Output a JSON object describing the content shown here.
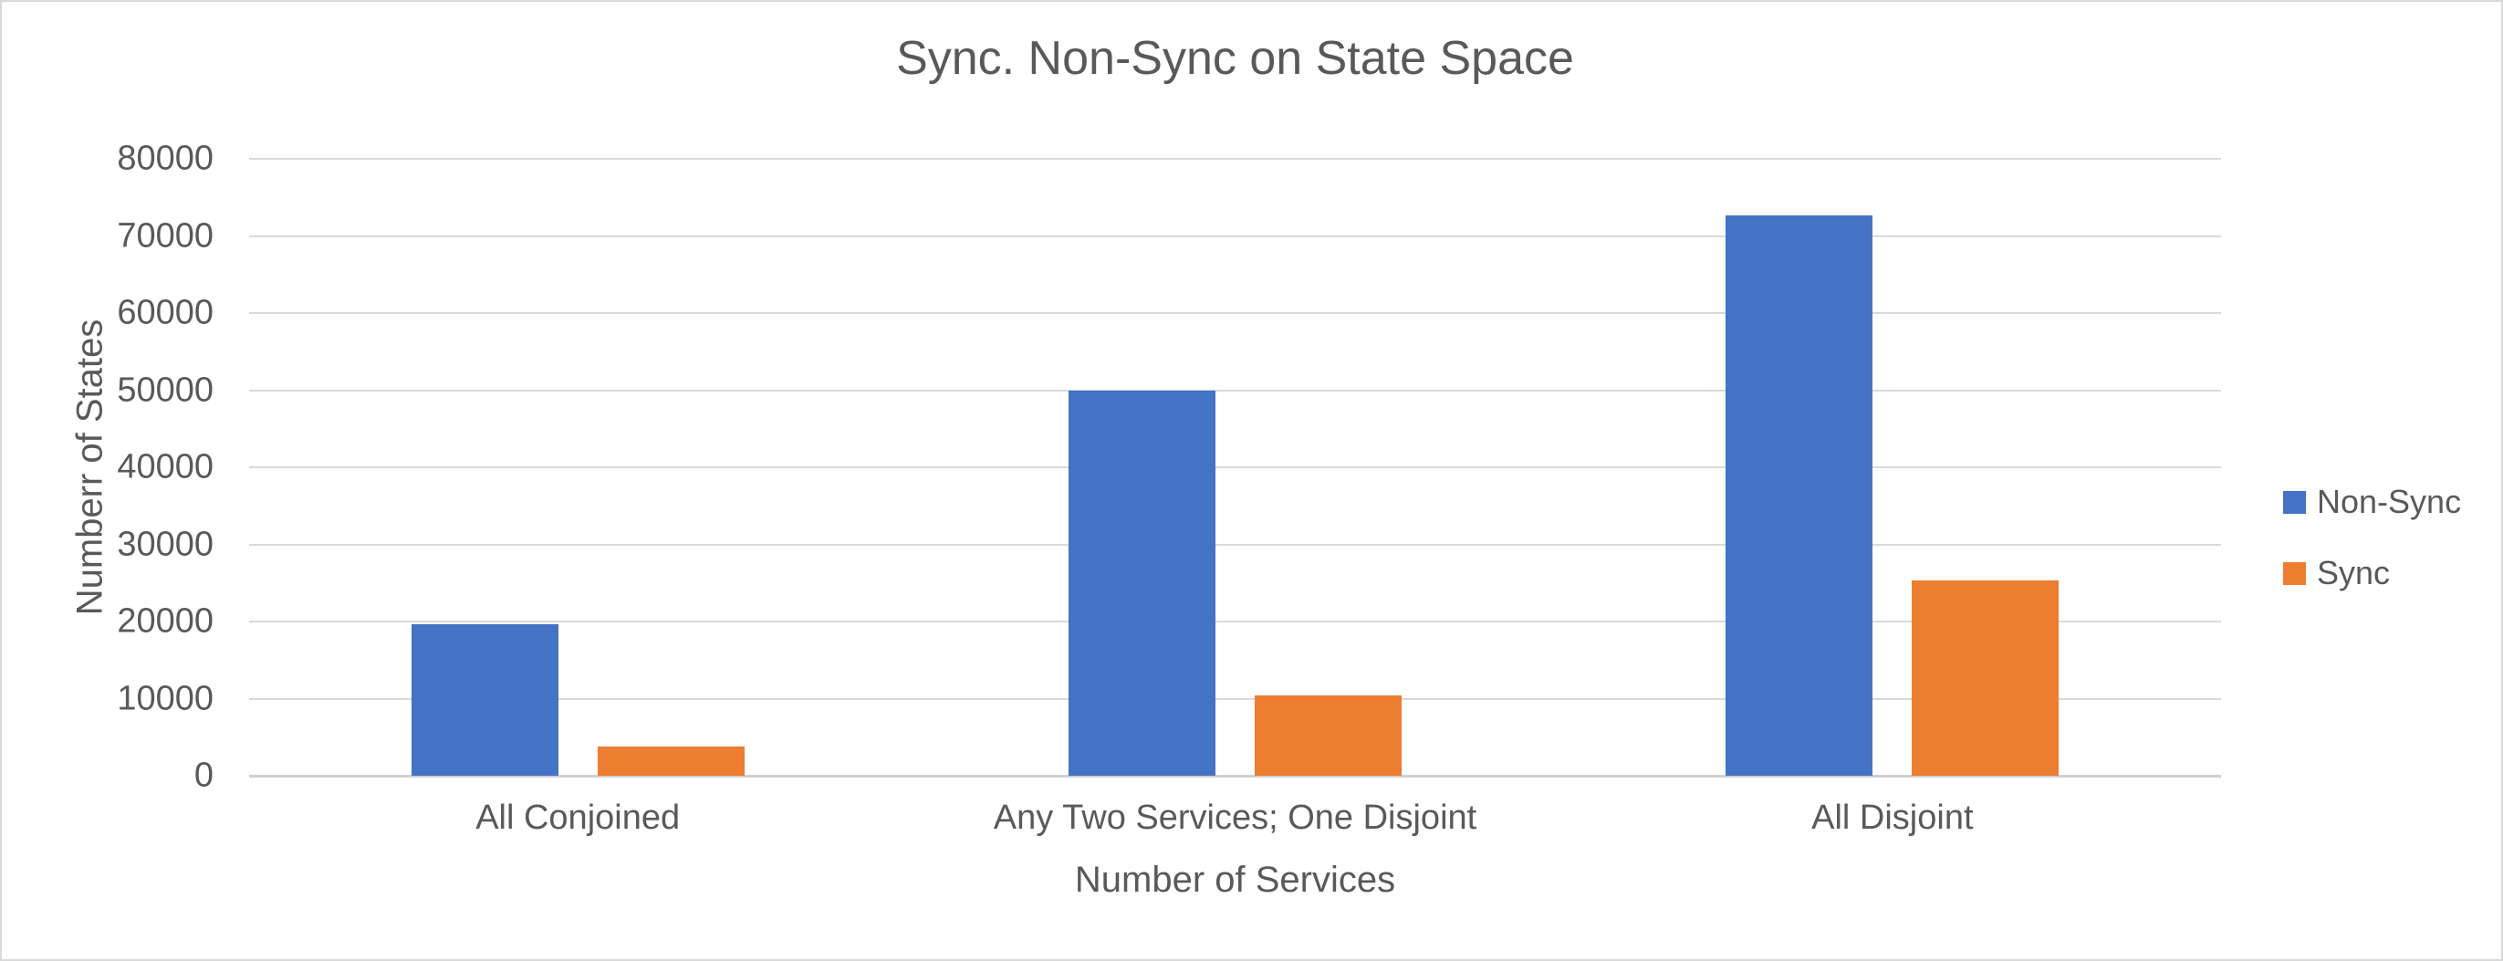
{
  "chart": {
    "background": "#ffffff",
    "border_color": "#d9d9d9",
    "text_color": "#595959",
    "gridline_color": "#d9d9d9"
  },
  "chart_data": {
    "type": "bar",
    "title": "Sync. Non-Sync on State Space",
    "xlabel": "Number of Services",
    "ylabel": "Numberr of States",
    "categories": [
      "All Conjoined",
      "Any Two Services; One Disjoint",
      "All Disjoint"
    ],
    "series": [
      {
        "name": "Non-Sync",
        "color": "#4472C4",
        "values": [
          19700,
          50000,
          72700
        ]
      },
      {
        "name": "Sync",
        "color": "#ED7D31",
        "values": [
          3800,
          10400,
          25300
        ]
      }
    ],
    "ylim": [
      0,
      80000
    ],
    "ytick_step": 10000,
    "ytick_labels": [
      "0",
      "10000",
      "20000",
      "30000",
      "40000",
      "50000",
      "60000",
      "70000",
      "80000"
    ],
    "grid": "horizontal",
    "legend_position": "right"
  }
}
